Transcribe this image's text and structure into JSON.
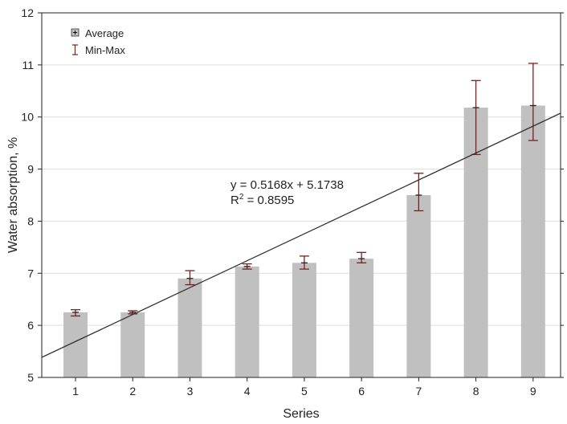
{
  "chart_data": {
    "type": "bar",
    "title": "",
    "xlabel": "Series",
    "ylabel": "Water absorption, %",
    "categories": [
      "1",
      "2",
      "3",
      "4",
      "5",
      "6",
      "7",
      "8",
      "9"
    ],
    "ylim": [
      5,
      12
    ],
    "yticks": [
      "5",
      "6",
      "7",
      "8",
      "9",
      "10",
      "11",
      "12"
    ],
    "grid": true,
    "legend": {
      "placement": "top-left",
      "entries": [
        "Average",
        "Min-Max"
      ]
    },
    "series": [
      {
        "name": "Average",
        "values": [
          6.25,
          6.25,
          6.9,
          7.13,
          7.2,
          7.28,
          8.5,
          10.18,
          10.22
        ]
      },
      {
        "name": "Min",
        "values": [
          6.18,
          6.22,
          6.78,
          7.08,
          7.08,
          7.2,
          8.2,
          9.28,
          9.55
        ]
      },
      {
        "name": "Max",
        "values": [
          6.3,
          6.28,
          7.05,
          7.18,
          7.33,
          7.4,
          8.92,
          10.7,
          11.03
        ]
      }
    ],
    "trendline": {
      "slope": 0.5168,
      "intercept": 5.1738,
      "equation": "y = 0.5168x + 5.1738",
      "r2_label": "R",
      "r2_sup": "2",
      "r2_value": " = 0.8595"
    },
    "colors": {
      "bar": "#c0c0c0",
      "error": "#7a1f1f",
      "line": "#333333",
      "grid": "#dddddd"
    }
  }
}
